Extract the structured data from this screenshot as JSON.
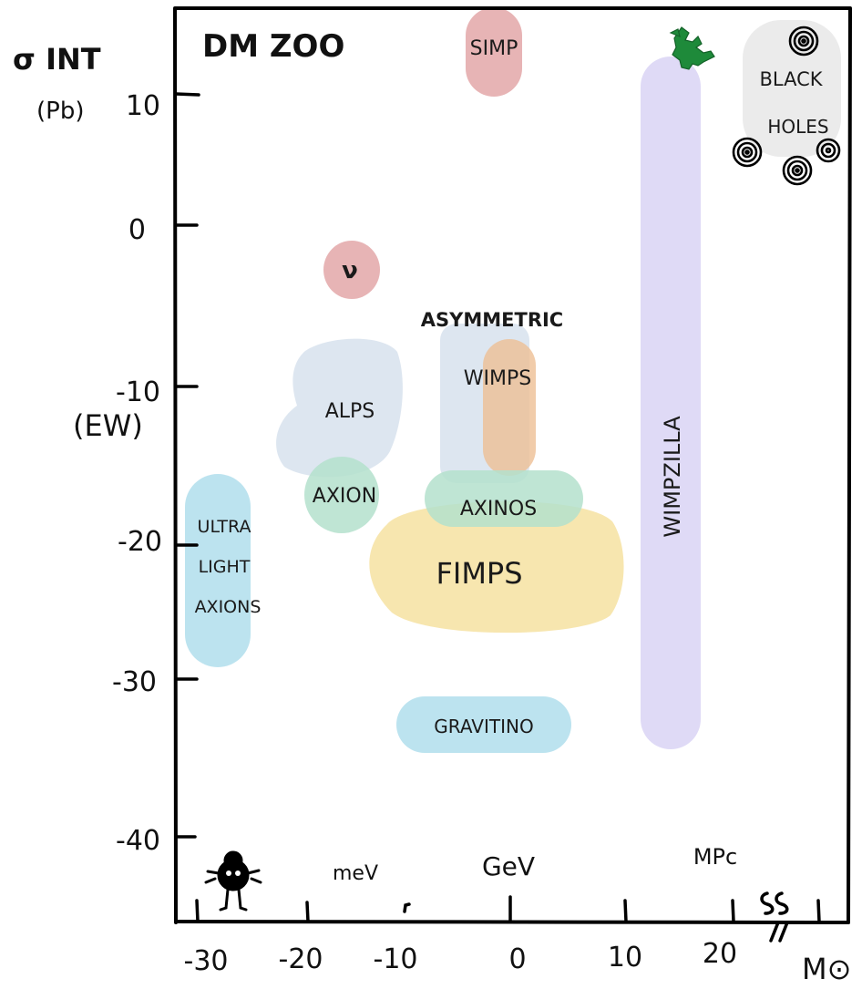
{
  "title": "DM ZOO",
  "y_axis": {
    "label": "σ INT",
    "unit": "(Pb)",
    "note": "(EW)",
    "ticks": [
      {
        "value": 10,
        "text": "10"
      },
      {
        "value": 0,
        "text": "0"
      },
      {
        "value": -10,
        "text": "-10"
      },
      {
        "value": -20,
        "text": "-20"
      },
      {
        "value": -30,
        "text": "-30"
      },
      {
        "value": -40,
        "text": "-40"
      }
    ]
  },
  "x_axis": {
    "label": "M⊙",
    "ticks": [
      {
        "value": -30,
        "text": "-30"
      },
      {
        "value": -20,
        "text": "-20"
      },
      {
        "value": -10,
        "text": "-10"
      },
      {
        "value": 0,
        "text": "0"
      },
      {
        "value": 10,
        "text": "10"
      },
      {
        "value": 20,
        "text": "20"
      }
    ],
    "markers": [
      {
        "value": -16,
        "text": "meV"
      },
      {
        "value": 0,
        "text": "GeV"
      },
      {
        "value": 18,
        "text": "MPc"
      }
    ]
  },
  "regions": [
    {
      "id": "simp",
      "label": "SIMP",
      "color": "#e3a7a8"
    },
    {
      "id": "nu",
      "label": "ν",
      "color": "#e3a7a8"
    },
    {
      "id": "asym",
      "label": "ASYMMETRIC",
      "color": "#dbe5ef"
    },
    {
      "id": "wimps",
      "label": "WIMPS",
      "color": "#eebf95"
    },
    {
      "id": "alps",
      "label": "ALPS",
      "color": "#dbe5ef"
    },
    {
      "id": "axion",
      "label": "AXION",
      "color": "#b4e0cc"
    },
    {
      "id": "axinos",
      "label": "AXINOS",
      "color": "#b4e0cc"
    },
    {
      "id": "fimps",
      "label": "FIMPS",
      "color": "#f6e3a6"
    },
    {
      "id": "ula",
      "label_lines": [
        "ULTRA",
        "LIGHT",
        "AXIONS"
      ],
      "color": "#b8e2ee"
    },
    {
      "id": "gravitino",
      "label": "GRAVITINO",
      "color": "#b8e2ee"
    },
    {
      "id": "wimpzilla",
      "label": "WIMPZILLA",
      "color": "#ddd8f6"
    },
    {
      "id": "blackholes",
      "label_lines": [
        "BLACK",
        "HOLES"
      ],
      "color": "#ebebeb"
    }
  ]
}
